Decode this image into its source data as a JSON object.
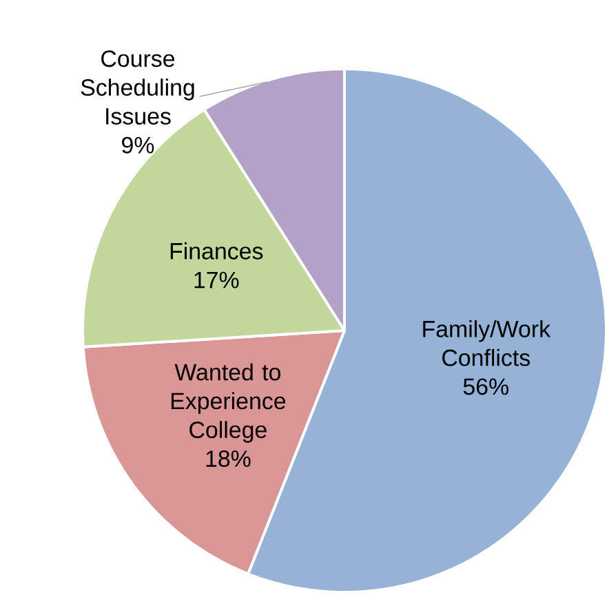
{
  "chart_data": {
    "type": "pie",
    "categories": [
      "Family/Work Conflicts",
      "Wanted to Experience College",
      "Finances",
      "Course Scheduling Issues"
    ],
    "values": [
      56,
      18,
      17,
      9
    ],
    "value_labels": [
      "56%",
      "18%",
      "17%",
      "9%"
    ],
    "colors": [
      "#95b3d7",
      "#d99694",
      "#c3d69b",
      "#b3a2c7"
    ]
  }
}
